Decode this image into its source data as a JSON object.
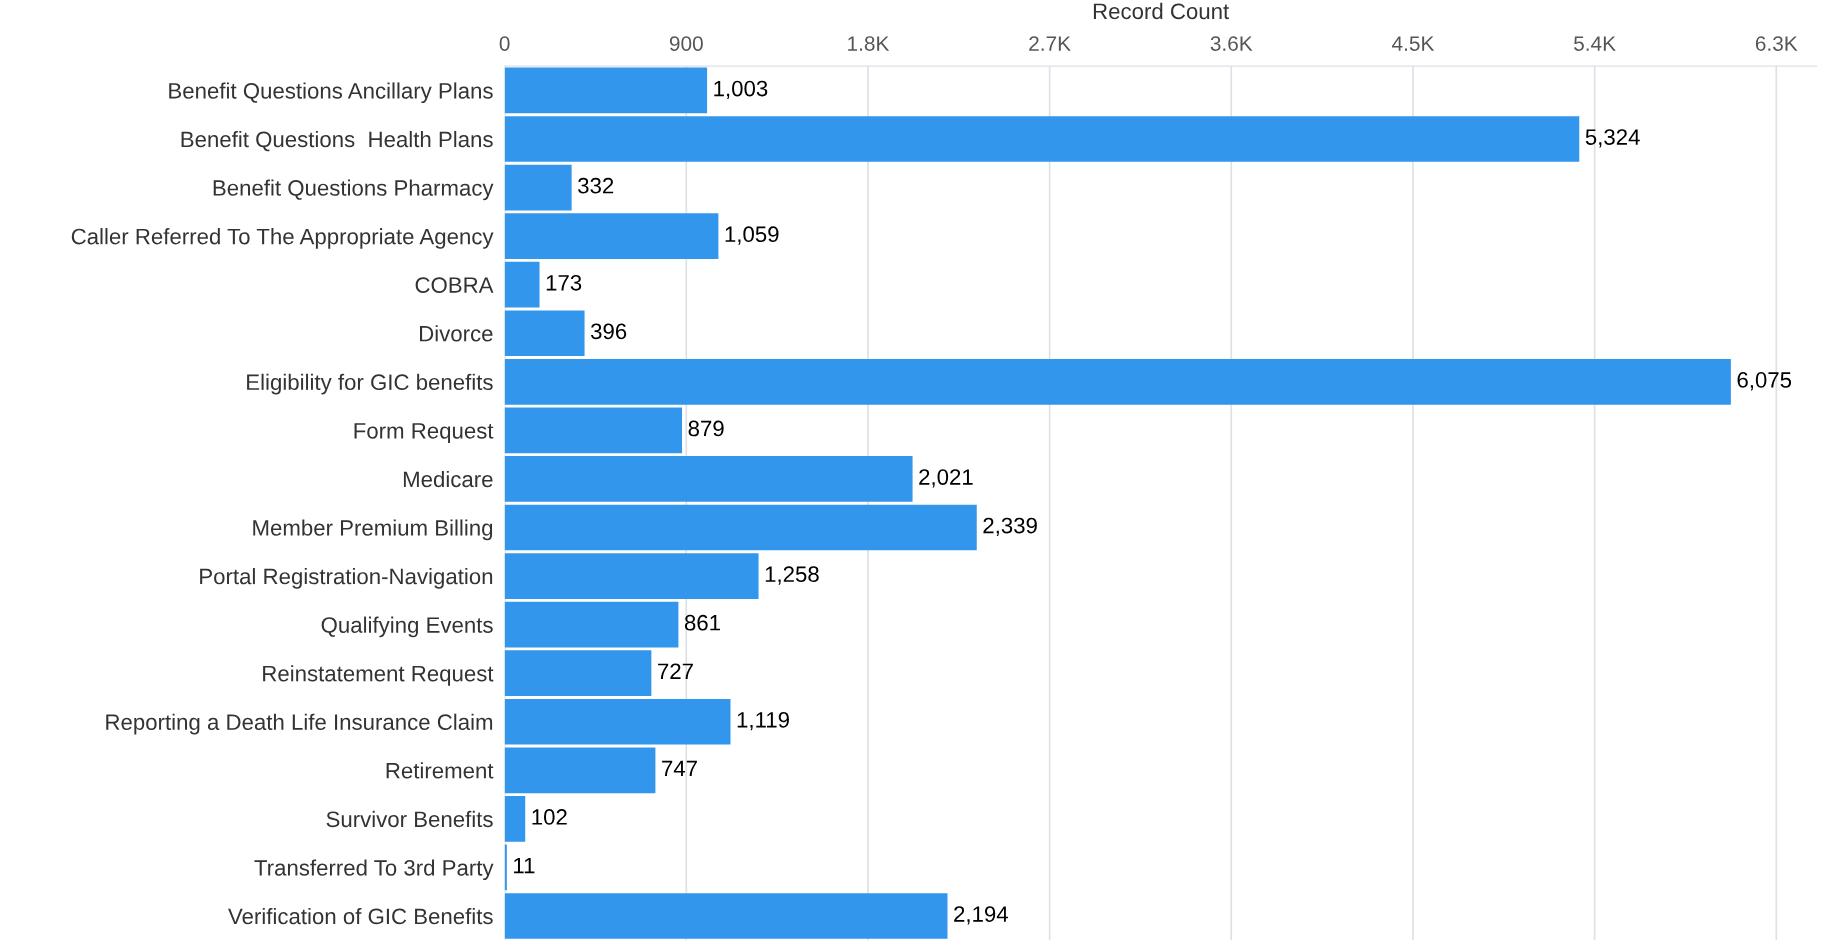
{
  "chart_data": {
    "type": "bar",
    "orientation": "horizontal",
    "xlabel": "Record Count",
    "categories": [
      "Benefit Questions Ancillary Plans",
      "Benefit Questions  Health Plans",
      "Benefit Questions Pharmacy",
      "Caller Referred To The Appropriate Agency",
      "COBRA",
      "Divorce",
      "Eligibility for GIC benefits",
      "Form Request",
      "Medicare",
      "Member Premium Billing",
      "Portal Registration-Navigation",
      "Qualifying Events",
      "Reinstatement Request",
      "Reporting a Death Life Insurance Claim",
      "Retirement",
      "Survivor Benefits",
      "Transferred To 3rd Party",
      "Verification of GIC Benefits"
    ],
    "values": [
      1003,
      5324,
      332,
      1059,
      173,
      396,
      6075,
      879,
      2021,
      2339,
      1258,
      861,
      727,
      1119,
      747,
      102,
      11,
      2194
    ],
    "value_labels": [
      "1,003",
      "5,324",
      "332",
      "1,059",
      "173",
      "396",
      "6,075",
      "879",
      "2,021",
      "2,339",
      "1,258",
      "861",
      "727",
      "1,119",
      "747",
      "102",
      "11",
      "2,194"
    ],
    "color": "#3196ec",
    "xlim": [
      0,
      6500
    ],
    "xticks": [
      0,
      900,
      {
        "value": 1800,
        "label": "1.8K"
      },
      {
        "value": 2700,
        "label": "2.7K"
      },
      {
        "value": 3600,
        "label": "3.6K"
      },
      {
        "value": 4500,
        "label": "4.5K"
      },
      {
        "value": 5400,
        "label": "5.4K"
      },
      {
        "value": 6300,
        "label": "6.3K"
      }
    ],
    "grid": "x",
    "legend": false
  }
}
